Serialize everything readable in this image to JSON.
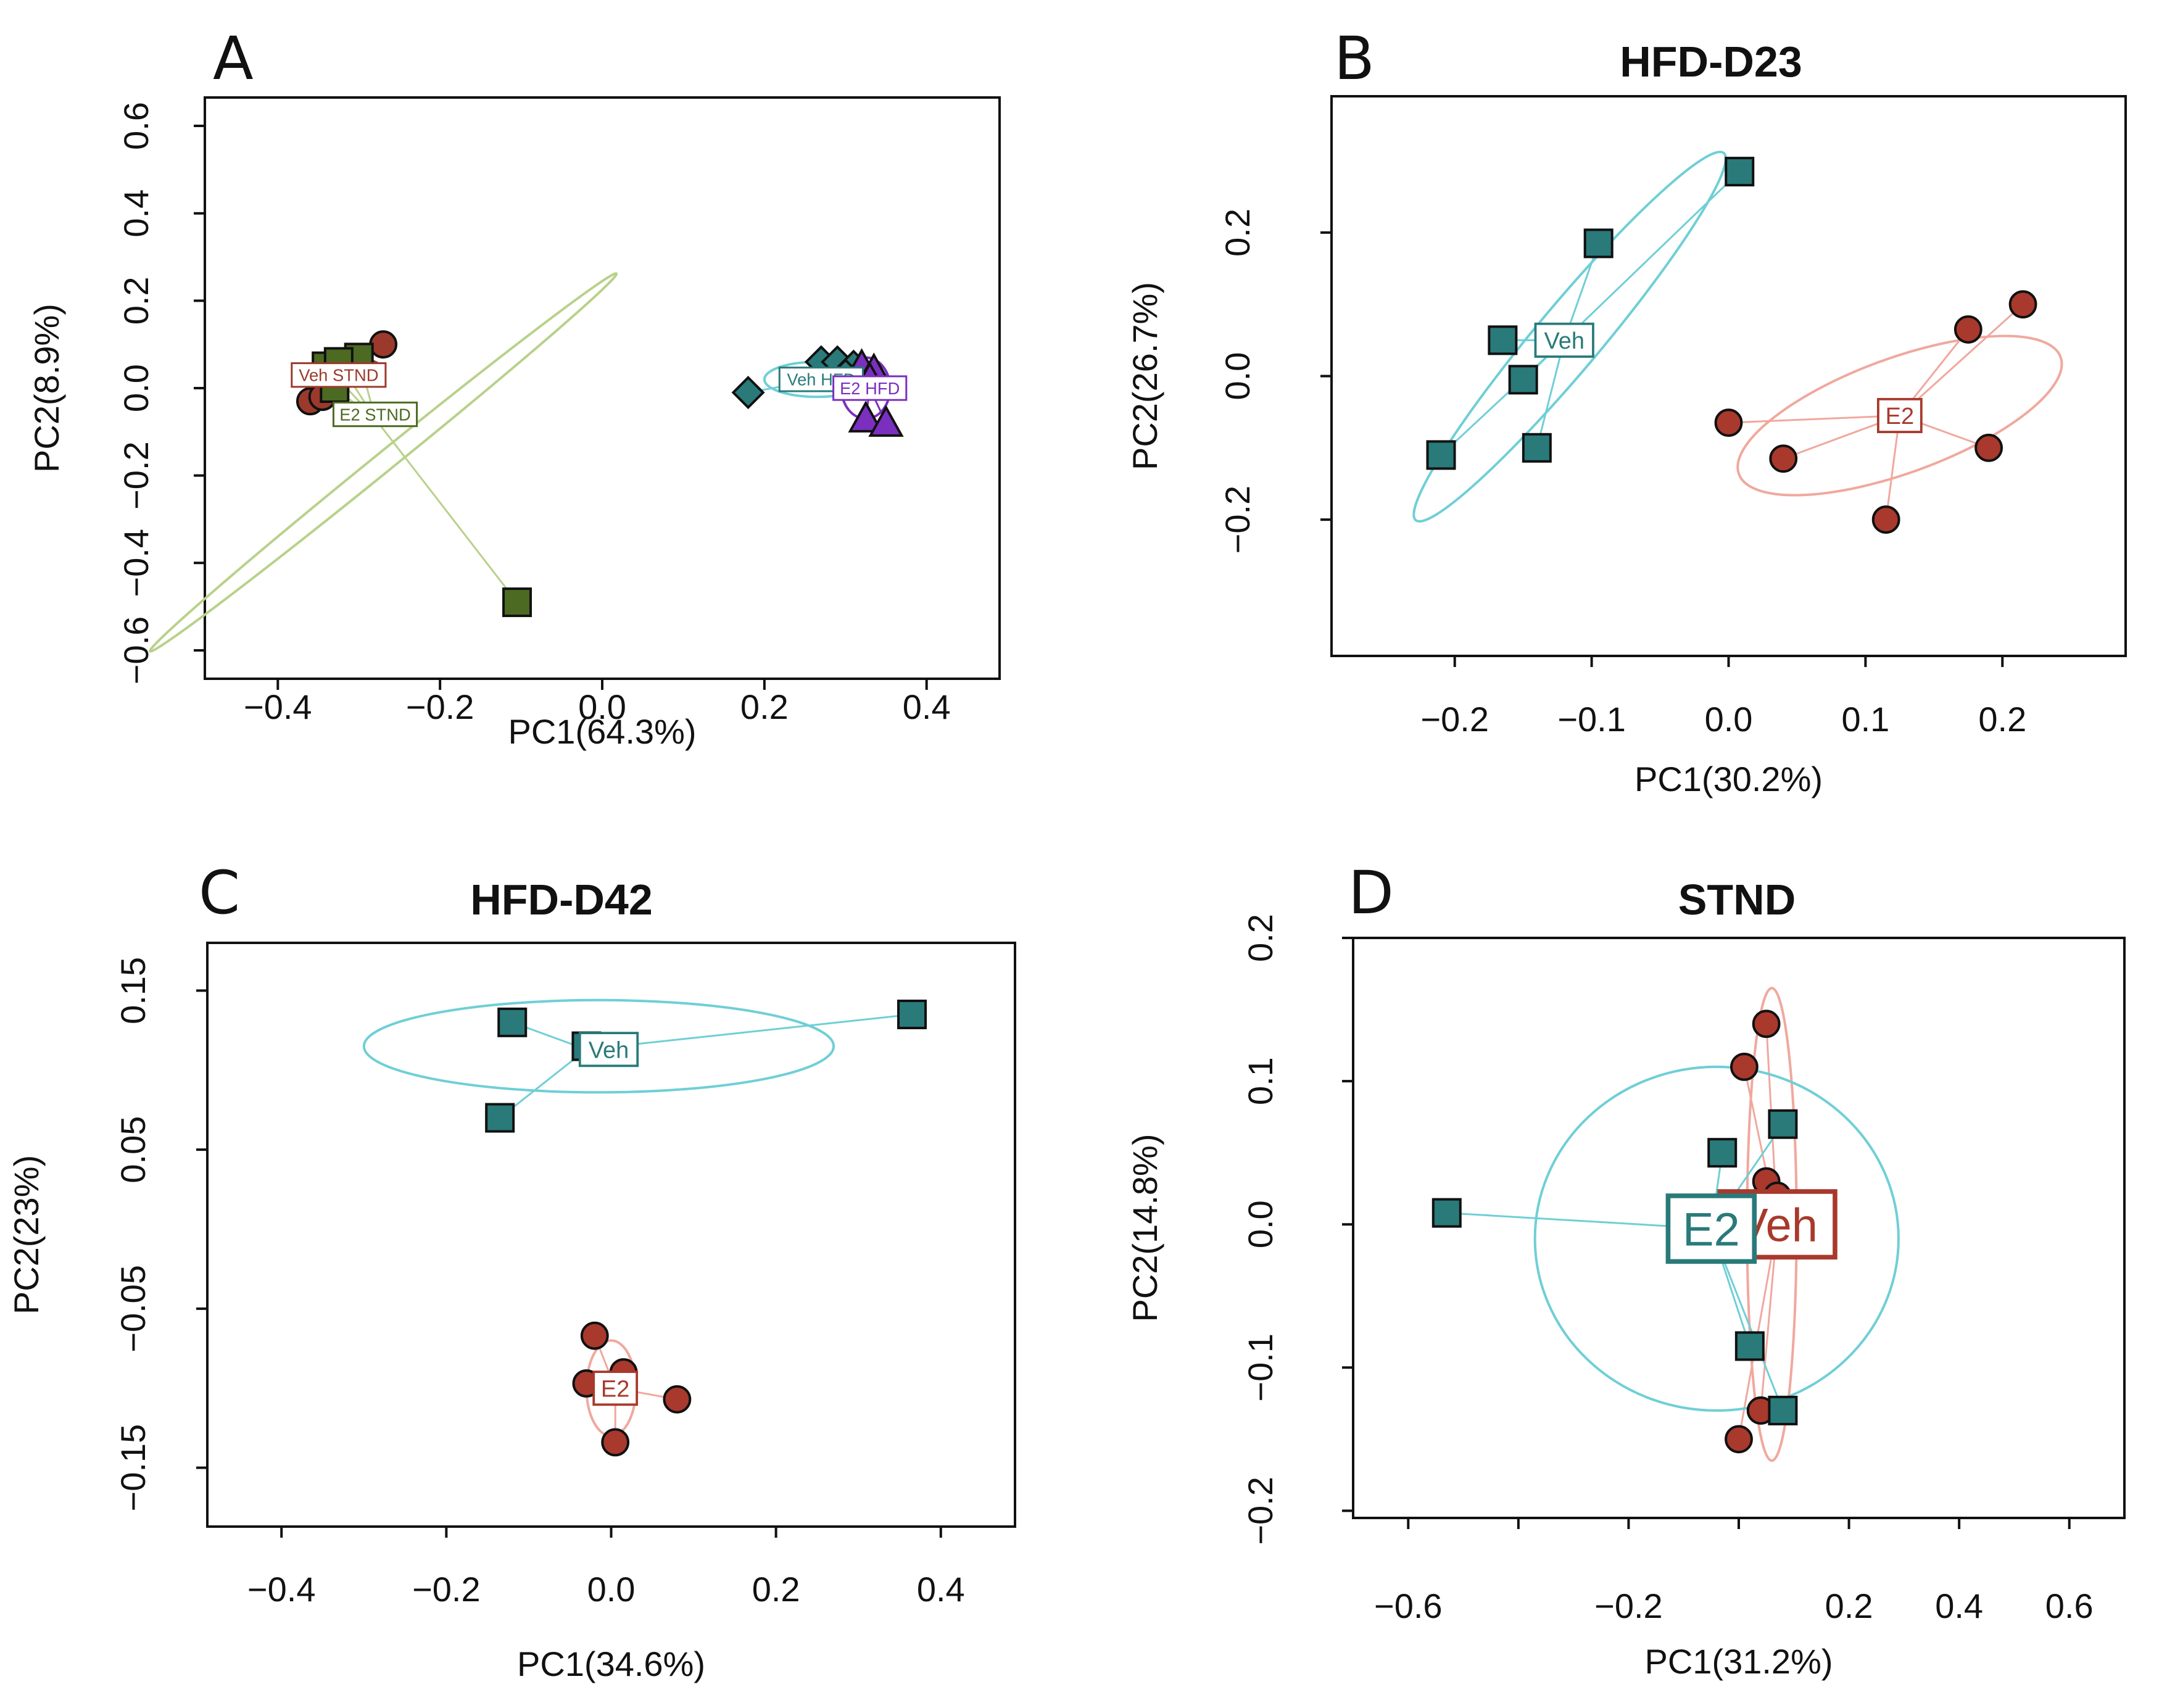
{
  "figure": {
    "panels": [
      {
        "letter": "A",
        "title": ""
      },
      {
        "letter": "B",
        "title": "HFD-D23"
      },
      {
        "letter": "C",
        "title": "HFD-D42"
      },
      {
        "letter": "D",
        "title": "STND"
      }
    ]
  },
  "colors": {
    "veh_stnd": "#9b3a2c",
    "e2_stnd": "#4c6a22",
    "veh_hfd": "#2a7a7a",
    "e2_hfd": "#7b2fbf",
    "veh": "#2a7a7a",
    "e2": "#a8392c",
    "veh_ellipse": "#6fcfd6",
    "e2_ellipse": "#f0a89e",
    "stnd_ellipse": "#b9d18a",
    "marker_edge": "#111111"
  },
  "chart_data": [
    {
      "panel": "A",
      "type": "scatter",
      "title": "",
      "xlabel": "PC1(64.3%)",
      "ylabel": "PC2(8.9%)",
      "xlim": [
        -0.49,
        0.49
      ],
      "ylim": [
        -0.665,
        0.665
      ],
      "xticks": [
        -0.4,
        -0.2,
        0.0,
        0.2,
        0.4
      ],
      "xtick_labels": [
        "−0.4",
        "−0.2",
        "0.0",
        "0.2",
        "0.4"
      ],
      "yticks": [
        -0.6,
        -0.4,
        -0.2,
        0.0,
        0.2,
        0.4,
        0.6
      ],
      "ytick_labels": [
        "−0.6",
        "−0.4",
        "−0.2",
        "0.0",
        "0.2",
        "0.4",
        "0.6"
      ],
      "series": [
        {
          "name": "Veh STND",
          "marker": "circle",
          "color_key": "veh_stnd",
          "ellipse_key": "veh_stnd",
          "center": [
            -0.32,
            0.03
          ],
          "label_at": [
            -0.325,
            0.03
          ],
          "label_scale": 0.36,
          "ellipse": {
            "cx": -0.31,
            "cy": 0.04,
            "rx": 0.04,
            "ry": 0.03,
            "angle": 0
          },
          "points": [
            [
              -0.27,
              0.1
            ],
            [
              -0.31,
              0.06
            ],
            [
              -0.33,
              0.04
            ],
            [
              -0.36,
              -0.03
            ],
            [
              -0.345,
              -0.02
            ],
            [
              -0.3,
              0.05
            ]
          ]
        },
        {
          "name": "E2 STND",
          "marker": "square",
          "color_key": "e2_stnd",
          "ellipse_key": "stnd_ellipse",
          "center": [
            -0.28,
            -0.07
          ],
          "label_at": [
            -0.28,
            -0.06
          ],
          "label_scale": 0.36,
          "ellipse": {
            "cx": -0.27,
            "cy": -0.17,
            "rx": 0.37,
            "ry": 0.022,
            "angle": -39
          },
          "points": [
            [
              -0.3,
              0.07
            ],
            [
              -0.33,
              0.0
            ],
            [
              -0.34,
              0.05
            ],
            [
              -0.325,
              0.06
            ],
            [
              -0.105,
              -0.49
            ]
          ]
        },
        {
          "name": "Veh HFD",
          "marker": "diamond",
          "color_key": "veh_hfd",
          "ellipse_key": "veh_ellipse",
          "center": [
            0.27,
            0.02
          ],
          "label_at": [
            0.27,
            0.02
          ],
          "label_scale": 0.36,
          "ellipse": {
            "cx": 0.265,
            "cy": 0.02,
            "rx": 0.065,
            "ry": 0.04,
            "angle": 0
          },
          "points": [
            [
              0.18,
              -0.01
            ],
            [
              0.27,
              0.06
            ],
            [
              0.29,
              0.06
            ],
            [
              0.31,
              0.05
            ],
            [
              0.3,
              0.03
            ]
          ]
        },
        {
          "name": "E2 HFD",
          "marker": "triangle",
          "color_key": "e2_hfd",
          "ellipse_key": "e2_hfd",
          "center": [
            0.33,
            0.0
          ],
          "label_at": [
            0.33,
            0.0
          ],
          "label_scale": 0.36,
          "ellipse": {
            "cx": 0.325,
            "cy": 0.0,
            "rx": 0.03,
            "ry": 0.07,
            "angle": 0
          },
          "points": [
            [
              0.32,
              0.05
            ],
            [
              0.335,
              0.04
            ],
            [
              0.325,
              -0.07
            ],
            [
              0.35,
              -0.08
            ],
            [
              0.33,
              0.02
            ]
          ]
        }
      ]
    },
    {
      "panel": "B",
      "type": "scatter",
      "title": "HFD-D23",
      "xlabel": "PC1(30.2%)",
      "ylabel": "PC2(26.7%)",
      "xlim": [
        -0.29,
        0.29
      ],
      "ylim": [
        -0.39,
        0.39
      ],
      "xticks": [
        -0.2,
        -0.1,
        0.0,
        0.1,
        0.2
      ],
      "xtick_labels": [
        "−0.2",
        "−0.1",
        "0.0",
        "0.1",
        "0.2"
      ],
      "yticks": [
        -0.2,
        0.0,
        0.2
      ],
      "ytick_labels": [
        "−0.2",
        "0.0",
        "0.2"
      ],
      "series": [
        {
          "name": "Veh",
          "marker": "square",
          "color_key": "veh",
          "ellipse_key": "veh_ellipse",
          "center": [
            -0.12,
            0.05
          ],
          "label_at": [
            -0.12,
            0.05
          ],
          "label_scale": 0.5,
          "ellipse": {
            "cx": -0.116,
            "cy": 0.055,
            "rx": 0.175,
            "ry": 0.045,
            "angle": -50
          },
          "points": [
            [
              -0.21,
              -0.11
            ],
            [
              -0.165,
              0.05
            ],
            [
              -0.15,
              -0.005
            ],
            [
              -0.14,
              -0.1
            ],
            [
              -0.095,
              0.185
            ],
            [
              0.008,
              0.285
            ]
          ]
        },
        {
          "name": "E2",
          "marker": "circle",
          "color_key": "e2",
          "ellipse_key": "e2_ellipse",
          "center": [
            0.125,
            -0.055
          ],
          "label_at": [
            0.125,
            -0.055
          ],
          "label_scale": 0.5,
          "ellipse": {
            "cx": 0.125,
            "cy": -0.055,
            "rx": 0.125,
            "ry": 0.08,
            "angle": -20
          },
          "points": [
            [
              0.0,
              -0.065
            ],
            [
              0.04,
              -0.115
            ],
            [
              0.115,
              -0.2
            ],
            [
              0.175,
              0.065
            ],
            [
              0.19,
              -0.1
            ],
            [
              0.215,
              0.1
            ]
          ]
        }
      ]
    },
    {
      "panel": "C",
      "type": "scatter",
      "title": "HFD-D42",
      "xlabel": "PC1(34.6%)",
      "ylabel": "PC2(23%)",
      "xlim": [
        -0.49,
        0.49
      ],
      "ylim": [
        -0.187,
        0.18
      ],
      "xticks": [
        -0.4,
        -0.2,
        0.0,
        0.2,
        0.4
      ],
      "xtick_labels": [
        "−0.4",
        "−0.2",
        "0.0",
        "0.2",
        "0.4"
      ],
      "yticks": [
        -0.15,
        -0.05,
        0.05,
        0.15
      ],
      "ytick_labels": [
        "−0.15",
        "−0.05",
        "0.05",
        "0.15"
      ],
      "series": [
        {
          "name": "Veh",
          "marker": "square",
          "color_key": "veh",
          "ellipse_key": "veh_ellipse",
          "center": [
            -0.03,
            0.113
          ],
          "label_at": [
            -0.003,
            0.113
          ],
          "label_scale": 0.5,
          "ellipse": {
            "cx": -0.015,
            "cy": 0.115,
            "rx": 0.285,
            "ry": 0.029,
            "angle": 0
          },
          "points": [
            [
              -0.135,
              0.07
            ],
            [
              -0.12,
              0.13
            ],
            [
              0.365,
              0.135
            ],
            [
              -0.03,
              0.115
            ]
          ]
        },
        {
          "name": "E2",
          "marker": "circle",
          "color_key": "e2",
          "ellipse_key": "e2_ellipse",
          "center": [
            0.005,
            -0.1
          ],
          "label_at": [
            0.005,
            -0.1
          ],
          "label_scale": 0.5,
          "ellipse": {
            "cx": 0.0,
            "cy": -0.1,
            "rx": 0.03,
            "ry": 0.03,
            "angle": 0
          },
          "points": [
            [
              -0.02,
              -0.067
            ],
            [
              -0.03,
              -0.097
            ],
            [
              0.015,
              -0.09
            ],
            [
              0.08,
              -0.107
            ],
            [
              0.005,
              -0.134
            ]
          ]
        }
      ]
    },
    {
      "panel": "D",
      "type": "scatter",
      "title": "STND",
      "xlabel": "PC1(31.2%)",
      "ylabel": "PC2(14.8%)",
      "xlim": [
        -0.7,
        0.7
      ],
      "ylim": [
        -0.205,
        0.2
      ],
      "xticks": [
        -0.6,
        -0.4,
        -0.2,
        0.0,
        0.2,
        0.4,
        0.6
      ],
      "xtick_labels": [
        "−0.6",
        "",
        "−0.2",
        "",
        "0.2",
        "0.4",
        "0.6"
      ],
      "yticks": [
        -0.2,
        -0.1,
        0.0,
        0.1,
        0.2
      ],
      "ytick_labels": [
        "−0.2",
        "−0.1",
        "0.0",
        "0.1",
        "0.2"
      ],
      "series": [
        {
          "name": "Veh",
          "marker": "circle",
          "color_key": "e2",
          "ellipse_key": "e2_ellipse",
          "center": [
            0.07,
            0.0
          ],
          "label_at": [
            0.07,
            0.0
          ],
          "label_scale": 1.0,
          "ellipse": {
            "cx": 0.06,
            "cy": 0.0,
            "rx": 0.045,
            "ry": 0.165,
            "angle": 0
          },
          "points": [
            [
              0.05,
              0.14
            ],
            [
              0.01,
              0.11
            ],
            [
              0.05,
              0.03
            ],
            [
              0.07,
              0.02
            ],
            [
              0.04,
              -0.13
            ],
            [
              0.0,
              -0.15
            ],
            [
              0.07,
              0.0
            ]
          ]
        },
        {
          "name": "E2",
          "marker": "square",
          "color_key": "veh",
          "ellipse_key": "veh_ellipse",
          "center": [
            -0.05,
            -0.003
          ],
          "label_at": [
            -0.05,
            -0.003
          ],
          "label_scale": 1.0,
          "ellipse": {
            "cx": -0.04,
            "cy": -0.01,
            "rx": 0.33,
            "ry": 0.12,
            "angle": 0
          },
          "points": [
            [
              -0.53,
              0.008
            ],
            [
              -0.03,
              0.05
            ],
            [
              0.08,
              0.07
            ],
            [
              0.02,
              -0.085
            ],
            [
              0.08,
              -0.13
            ]
          ]
        }
      ]
    }
  ]
}
